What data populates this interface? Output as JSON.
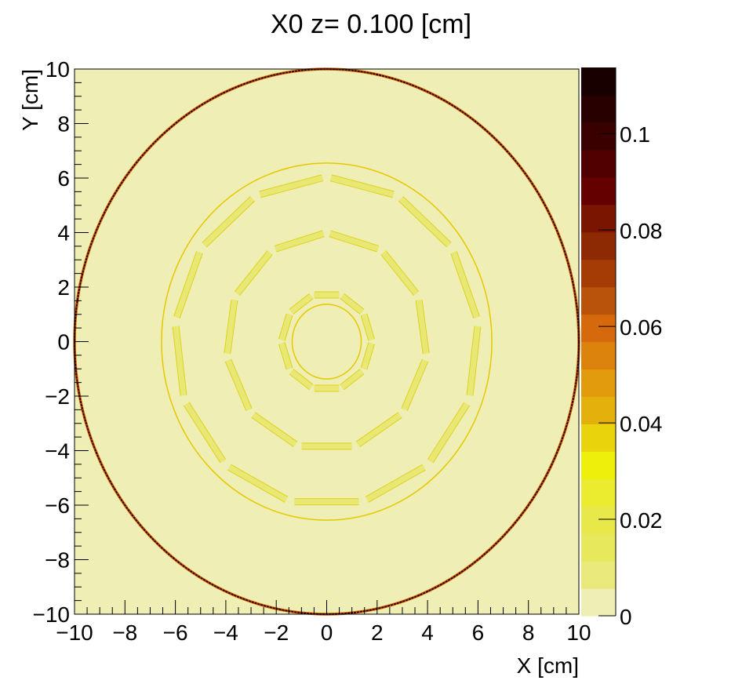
{
  "chart_data": {
    "type": "heatmap",
    "title": "X0 z=  0.100 [cm]",
    "xlabel": "X [cm]",
    "ylabel": "Y [cm]",
    "xlim": [
      -10,
      10
    ],
    "ylim": [
      -10,
      10
    ],
    "xticks": [
      "−10",
      "−8",
      "−6",
      "−4",
      "−2",
      "0",
      "2",
      "4",
      "6",
      "8",
      "10"
    ],
    "yticks": [
      "−10",
      "−8",
      "−6",
      "−4",
      "−2",
      "0",
      "2",
      "4",
      "6",
      "8",
      "10"
    ],
    "zlim": [
      0,
      0.1137
    ],
    "colorbar": {
      "ticks": [
        0,
        0.02,
        0.04,
        0.06,
        0.08,
        0.1
      ],
      "tick_labels": [
        "0",
        "0.02",
        "0.04",
        "0.06",
        "0.08",
        "0.1"
      ],
      "levels": [
        "#efeeb4",
        "#e9e97c",
        "#e8e85c",
        "#e8e84a",
        "#ebeb30",
        "#eef00c",
        "#e9d30d",
        "#e4b00c",
        "#e19b0c",
        "#db830d",
        "#d5690b",
        "#b9520a",
        "#a63c05",
        "#8e2a03",
        "#7a1502",
        "#650001",
        "#500000",
        "#3a0000",
        "#280000",
        "#190000",
        "#000000"
      ]
    },
    "background_value": 0,
    "features": [
      {
        "shape": "circle",
        "radius": 10,
        "value": 0.11,
        "color": "#2a0000"
      },
      {
        "shape": "circle",
        "radius": 6.55,
        "value": 0.03,
        "color": "#e6c800"
      },
      {
        "shape": "circle",
        "radius": 1.37,
        "value": 0.03,
        "color": "#e6c800"
      },
      {
        "shape": "polygon-staves",
        "sides": 10,
        "radius": 1.8,
        "value": 0.012,
        "color": "#e8e874"
      },
      {
        "shape": "polygon-staves",
        "sides": 11,
        "radius": 4.0,
        "value": 0.012,
        "color": "#e8e874"
      },
      {
        "shape": "polygon-staves",
        "sides": 13,
        "radius": 6.05,
        "value": 0.012,
        "color": "#e8e874"
      }
    ]
  }
}
